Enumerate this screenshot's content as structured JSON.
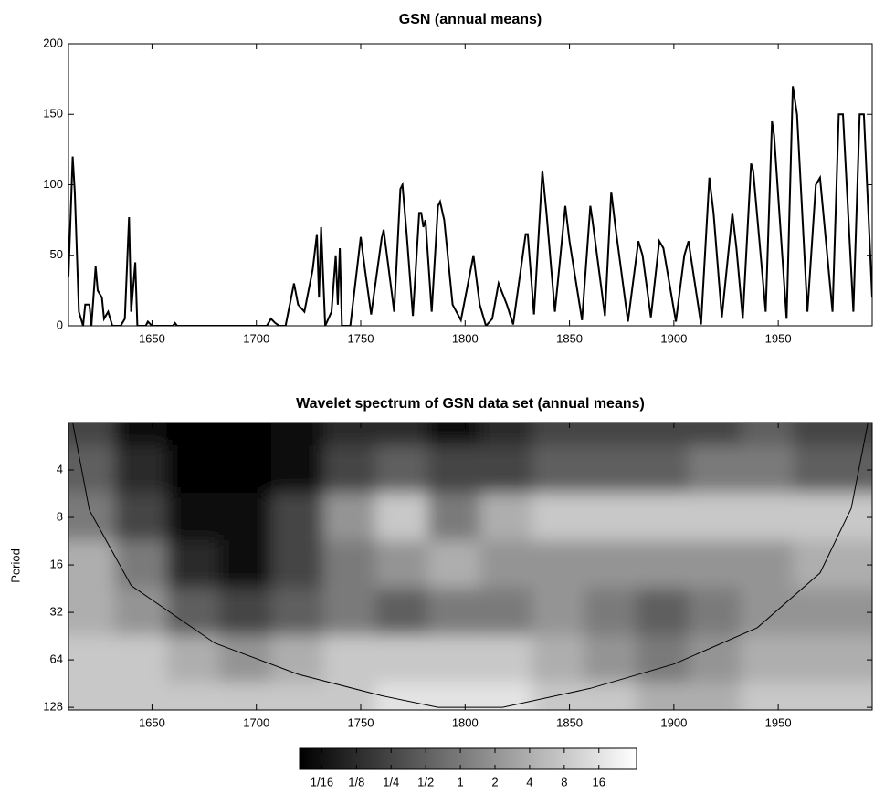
{
  "chart_data": [
    {
      "type": "line",
      "title": "GSN (annual means)",
      "x": [
        1610,
        1612,
        1613,
        1615,
        1617,
        1618,
        1620,
        1621,
        1623,
        1624,
        1626,
        1627,
        1629,
        1631,
        1635,
        1637,
        1639,
        1640,
        1642,
        1643,
        1647,
        1648,
        1650,
        1660,
        1661,
        1662,
        1705,
        1707,
        1709,
        1711,
        1714,
        1718,
        1720,
        1723,
        1727,
        1729,
        1730,
        1731,
        1733,
        1736,
        1738,
        1739,
        1740,
        1741,
        1745,
        1750,
        1752,
        1755,
        1760,
        1761,
        1763,
        1766,
        1769,
        1770,
        1772,
        1775,
        1778,
        1779,
        1780,
        1781,
        1784,
        1787,
        1788,
        1790,
        1794,
        1798,
        1804,
        1807,
        1810,
        1813,
        1816,
        1820,
        1823,
        1829,
        1830,
        1833,
        1837,
        1839,
        1843,
        1848,
        1850,
        1856,
        1860,
        1861,
        1867,
        1870,
        1872,
        1878,
        1883,
        1885,
        1889,
        1893,
        1895,
        1901,
        1905,
        1907,
        1913,
        1917,
        1919,
        1923,
        1928,
        1930,
        1933,
        1937,
        1938,
        1944,
        1947,
        1948,
        1954,
        1957,
        1959,
        1964,
        1968,
        1970,
        1976,
        1979,
        1981,
        1986,
        1989,
        1991,
        1995
      ],
      "values": [
        35,
        120,
        95,
        10,
        0,
        15,
        15,
        0,
        42,
        25,
        20,
        5,
        10,
        0,
        0,
        5,
        77,
        10,
        45,
        0,
        0,
        3,
        0,
        0,
        2,
        0,
        0,
        5,
        2,
        0,
        0,
        30,
        15,
        10,
        40,
        65,
        20,
        70,
        0,
        10,
        50,
        15,
        55,
        0,
        0,
        63,
        40,
        8,
        62,
        68,
        45,
        10,
        97,
        100,
        65,
        7,
        80,
        80,
        70,
        75,
        10,
        85,
        88,
        75,
        15,
        4,
        50,
        15,
        0,
        5,
        30,
        15,
        1,
        65,
        65,
        8,
        110,
        80,
        10,
        85,
        60,
        4,
        85,
        75,
        7,
        95,
        70,
        3,
        60,
        50,
        6,
        60,
        55,
        3,
        50,
        60,
        1,
        105,
        80,
        6,
        80,
        55,
        5,
        115,
        110,
        10,
        145,
        135,
        5,
        170,
        150,
        10,
        100,
        105,
        10,
        150,
        150,
        10,
        150,
        150,
        20
      ],
      "color": "#000000",
      "xlim": [
        1610,
        1995
      ],
      "ylim": [
        0,
        200
      ],
      "xticks": [
        1650,
        1700,
        1750,
        1800,
        1850,
        1900,
        1950
      ],
      "yticks": [
        0,
        50,
        100,
        150,
        200
      ]
    },
    {
      "type": "heatmap",
      "title": "Wavelet spectrum of GSN data set (annual means)",
      "ylabel": "Period",
      "x": [
        1620,
        1645,
        1670,
        1695,
        1720,
        1745,
        1770,
        1795,
        1820,
        1845,
        1870,
        1895,
        1920,
        1945,
        1970,
        1995
      ],
      "y": [
        2,
        4,
        8,
        16,
        32,
        64,
        128
      ],
      "values": [
        [
          0.25,
          0.0625,
          0.03125,
          0.03125,
          0.0625,
          0.125,
          0.125,
          0.0625,
          0.125,
          0.25,
          0.25,
          0.25,
          0.25,
          0.5,
          0.25,
          0.25
        ],
        [
          0.5,
          0.125,
          0.03125,
          0.03125,
          0.0625,
          0.25,
          0.5,
          0.25,
          0.25,
          0.5,
          0.5,
          0.5,
          1,
          1,
          0.5,
          0.5
        ],
        [
          1,
          0.25,
          0.0625,
          0.0625,
          0.25,
          2,
          8,
          1,
          4,
          8,
          8,
          8,
          8,
          8,
          8,
          8
        ],
        [
          4,
          1,
          0.125,
          0.0625,
          0.25,
          1,
          2,
          4,
          2,
          2,
          2,
          2,
          2,
          2,
          4,
          4
        ],
        [
          4,
          2,
          0.5,
          0.25,
          0.5,
          1,
          0.5,
          1,
          1,
          2,
          1,
          0.5,
          1,
          2,
          2,
          2
        ],
        [
          8,
          8,
          4,
          2,
          4,
          8,
          8,
          8,
          8,
          4,
          2,
          1,
          2,
          4,
          4,
          4
        ],
        [
          8,
          8,
          8,
          8,
          8,
          8,
          16,
          16,
          16,
          8,
          8,
          4,
          4,
          8,
          8,
          8
        ]
      ],
      "xlim": [
        1610,
        1995
      ],
      "ylim": [
        2,
        133
      ],
      "ylog": true,
      "xticks": [
        1650,
        1700,
        1750,
        1800,
        1850,
        1900,
        1950
      ],
      "yticks": [
        4,
        8,
        16,
        32,
        64,
        128
      ],
      "colormap": [
        "#000000",
        "#ffffff"
      ],
      "clim": [
        0.04,
        34
      ],
      "clog": true,
      "cticks": [
        {
          "value": 0.0625,
          "label": "1/16"
        },
        {
          "value": 0.125,
          "label": "1/8"
        },
        {
          "value": 0.25,
          "label": "1/4"
        },
        {
          "value": 0.5,
          "label": "1/2"
        },
        1,
        2,
        4,
        8,
        16
      ],
      "coi": {
        "x": [
          1612,
          1620,
          1640,
          1680,
          1720,
          1760,
          1787,
          1818,
          1860,
          1900,
          1940,
          1970,
          1985,
          1993
        ],
        "values": [
          2,
          7.2,
          21.6,
          50,
          79,
          108,
          128,
          128,
          97,
          68,
          40,
          18,
          7,
          2
        ],
        "color": "#000000"
      }
    }
  ]
}
